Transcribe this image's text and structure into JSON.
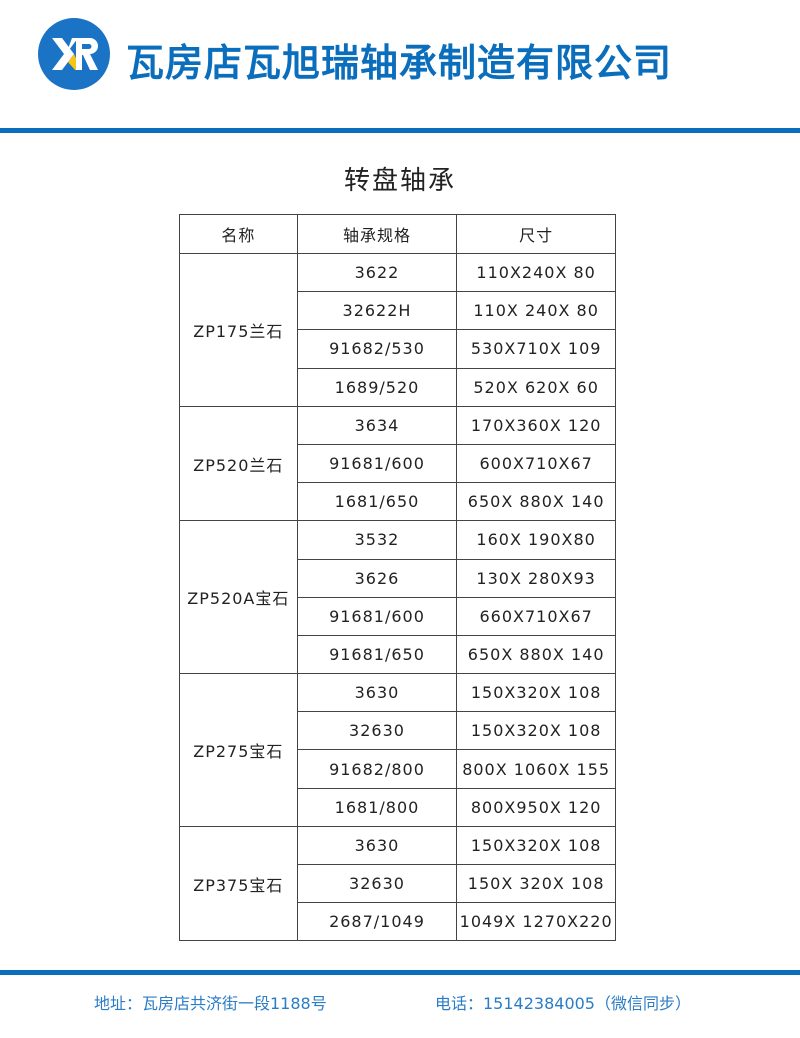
{
  "header": {
    "logo_text": "XR",
    "company": "瓦房店瓦旭瑞轴承制造有限公司",
    "brand_color": "#0a6ebd",
    "accent_color": "#f5c518"
  },
  "title": "转盘轴承",
  "table": {
    "columns": [
      "名称",
      "轴承规格",
      "尺寸"
    ],
    "groups": [
      {
        "name": "ZP175兰石",
        "rows": [
          [
            "3622",
            "110X240X 80"
          ],
          [
            "32622H",
            "110X 240X 80"
          ],
          [
            "91682/530",
            "530X710X 109"
          ],
          [
            "1689/520",
            "520X 620X 60"
          ]
        ]
      },
      {
        "name": "ZP520兰石",
        "rows": [
          [
            "3634",
            "170X360X 120"
          ],
          [
            "91681/600",
            "600X710X67"
          ],
          [
            "1681/650",
            "650X 880X 140"
          ]
        ]
      },
      {
        "name": "ZP520A宝石",
        "rows": [
          [
            "3532",
            "160X 190X80"
          ],
          [
            "3626",
            "130X 280X93"
          ],
          [
            "91681/600",
            "660X710X67"
          ],
          [
            "91681/650",
            "650X 880X 140"
          ]
        ]
      },
      {
        "name": "ZP275宝石",
        "rows": [
          [
            "3630",
            "150X320X 108"
          ],
          [
            "32630",
            "150X320X 108"
          ],
          [
            "91682/800",
            "800X 1060X 155"
          ],
          [
            "1681/800",
            "800X950X 120"
          ]
        ]
      },
      {
        "name": "ZP375宝石",
        "rows": [
          [
            "3630",
            "150X320X 108"
          ],
          [
            "32630",
            "150X 320X 108"
          ],
          [
            "2687/1049",
            "1049X 1270X220"
          ]
        ]
      }
    ]
  },
  "footer": {
    "address": "地址：瓦房店共济街一段1188号",
    "phone": "电话：15142384005（微信同步）"
  }
}
